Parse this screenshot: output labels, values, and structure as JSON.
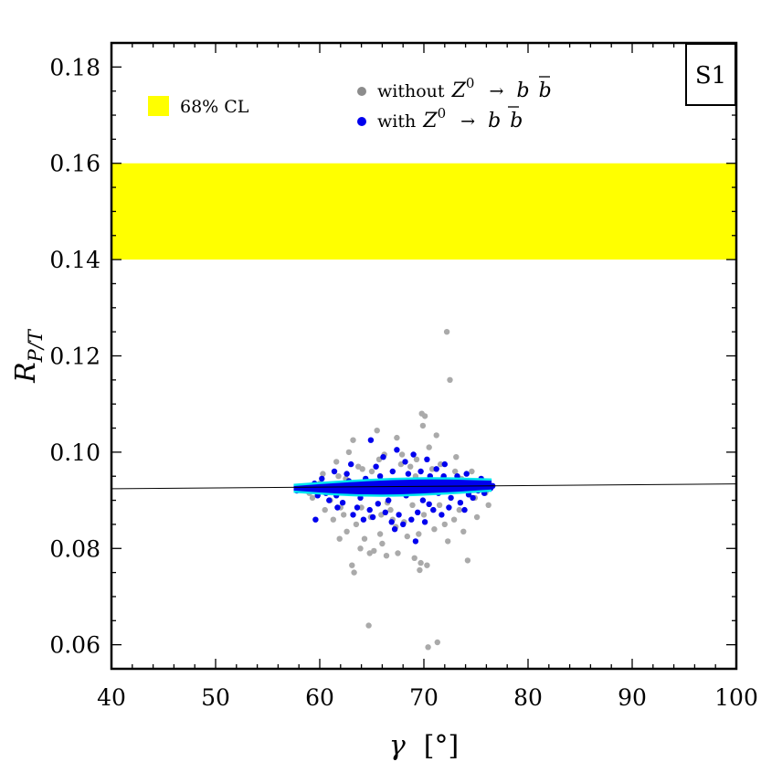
{
  "chart_data": {
    "type": "scatter",
    "panel_label": "S1",
    "xlabel": {
      "symbol": "γ",
      "unit": "[°]"
    },
    "ylabel": {
      "main": "R",
      "sub": "P/T"
    },
    "xlim": [
      40,
      100
    ],
    "ylim": [
      0.055,
      0.185
    ],
    "x_ticks": [
      {
        "value": 40,
        "label": "40"
      },
      {
        "value": 50,
        "label": "50"
      },
      {
        "value": 60,
        "label": "60"
      },
      {
        "value": 70,
        "label": "70"
      },
      {
        "value": 80,
        "label": "80"
      },
      {
        "value": 90,
        "label": "90"
      },
      {
        "value": 100,
        "label": "100"
      }
    ],
    "y_ticks": [
      {
        "value": 0.06,
        "label": "0.06"
      },
      {
        "value": 0.08,
        "label": "0.08"
      },
      {
        "value": 0.1,
        "label": "0.10"
      },
      {
        "value": 0.12,
        "label": "0.12"
      },
      {
        "value": 0.14,
        "label": "0.14"
      },
      {
        "value": 0.16,
        "label": "0.16"
      },
      {
        "value": 0.18,
        "label": "0.18"
      }
    ],
    "band": {
      "label": "68% CL",
      "y_low": 0.14,
      "y_high": 0.16,
      "color": "#ffff00"
    },
    "reference_line": {
      "x": [
        40,
        100
      ],
      "y": [
        0.0924,
        0.0934
      ],
      "color": "#000000"
    },
    "envelope": {
      "color": "#00e5ee",
      "x": [
        57.5,
        62,
        67,
        72,
        76.5
      ],
      "upper": [
        0.0932,
        0.0939,
        0.0945,
        0.0946,
        0.0943
      ],
      "lower": [
        0.0918,
        0.0911,
        0.0909,
        0.0914,
        0.092
      ]
    },
    "legend": [
      {
        "label": "without",
        "expr": "Z",
        "sup": "0",
        "arrow": "→",
        "b": "b",
        "bbar": "b",
        "color": "#8c8c8c"
      },
      {
        "label": "with",
        "expr": "Z",
        "sup": "0",
        "arrow": "→",
        "b": "b",
        "bbar": "b",
        "color": "#0000ee"
      }
    ],
    "series": [
      {
        "name": "without",
        "color": "#aaaaaa",
        "points": [
          [
            72.2,
            0.125
          ],
          [
            72.5,
            0.115
          ],
          [
            69.8,
            0.108
          ],
          [
            70.1,
            0.1075
          ],
          [
            69.9,
            0.1055
          ],
          [
            65.5,
            0.1045
          ],
          [
            71.2,
            0.1035
          ],
          [
            63.2,
            0.1025
          ],
          [
            67.4,
            0.103
          ],
          [
            62.8,
            0.1
          ],
          [
            61.6,
            0.098
          ],
          [
            73.1,
            0.099
          ],
          [
            70.5,
            0.101
          ],
          [
            66.2,
            0.0995
          ],
          [
            64.1,
            0.0965
          ],
          [
            68.7,
            0.097
          ],
          [
            74.6,
            0.096
          ],
          [
            60.3,
            0.0955
          ],
          [
            69.2,
            0.095
          ],
          [
            71.8,
            0.0945
          ],
          [
            62.0,
            0.0885
          ],
          [
            66.8,
            0.088
          ],
          [
            70.0,
            0.087
          ],
          [
            73.4,
            0.088
          ],
          [
            64.9,
            0.0865
          ],
          [
            61.3,
            0.086
          ],
          [
            68.1,
            0.0855
          ],
          [
            72.9,
            0.086
          ],
          [
            75.1,
            0.0865
          ],
          [
            63.5,
            0.085
          ],
          [
            67.3,
            0.0845
          ],
          [
            71.0,
            0.084
          ],
          [
            62.6,
            0.0835
          ],
          [
            65.8,
            0.083
          ],
          [
            69.5,
            0.083
          ],
          [
            73.8,
            0.0835
          ],
          [
            61.9,
            0.082
          ],
          [
            64.3,
            0.082
          ],
          [
            68.4,
            0.0825
          ],
          [
            72.3,
            0.0815
          ],
          [
            66.0,
            0.081
          ],
          [
            63.9,
            0.08
          ],
          [
            65.2,
            0.0795
          ],
          [
            64.8,
            0.079
          ],
          [
            66.4,
            0.0785
          ],
          [
            69.1,
            0.078
          ],
          [
            69.7,
            0.077
          ],
          [
            70.3,
            0.0765
          ],
          [
            74.2,
            0.0775
          ],
          [
            63.1,
            0.0765
          ],
          [
            63.3,
            0.075
          ],
          [
            69.6,
            0.0755
          ],
          [
            67.5,
            0.079
          ],
          [
            64.7,
            0.064
          ],
          [
            71.3,
            0.0605
          ],
          [
            70.4,
            0.0595
          ],
          [
            60.5,
            0.088
          ],
          [
            59.3,
            0.0905
          ],
          [
            76.2,
            0.089
          ],
          [
            75.9,
            0.0915
          ],
          [
            58.4,
            0.0925
          ],
          [
            62.5,
            0.0945
          ],
          [
            65.0,
            0.096
          ],
          [
            67.8,
            0.0975
          ],
          [
            70.8,
            0.0965
          ],
          [
            73.6,
            0.0945
          ],
          [
            61.0,
            0.09
          ],
          [
            66.5,
            0.0895
          ],
          [
            71.5,
            0.089
          ],
          [
            74.9,
            0.0905
          ],
          [
            68.9,
            0.089
          ],
          [
            64.0,
            0.0885
          ],
          [
            65.9,
            0.087
          ],
          [
            70.9,
            0.088
          ],
          [
            62.3,
            0.087
          ],
          [
            67.0,
            0.086
          ],
          [
            72.0,
            0.085
          ],
          [
            60.0,
            0.0935
          ],
          [
            61.8,
            0.095
          ],
          [
            63.7,
            0.097
          ],
          [
            65.7,
            0.0985
          ],
          [
            67.9,
            0.0995
          ],
          [
            69.3,
            0.0985
          ],
          [
            71.6,
            0.0975
          ],
          [
            73.0,
            0.096
          ],
          [
            75.4,
            0.094
          ],
          [
            59.0,
            0.0915
          ],
          [
            76.0,
            0.092
          ]
        ]
      },
      {
        "name": "with",
        "color": "#0000ee",
        "points": [
          [
            64.9,
            0.1025
          ],
          [
            67.4,
            0.1005
          ],
          [
            69.0,
            0.0995
          ],
          [
            70.3,
            0.0985
          ],
          [
            66.1,
            0.099
          ],
          [
            63.0,
            0.0975
          ],
          [
            72.0,
            0.0975
          ],
          [
            68.2,
            0.098
          ],
          [
            65.4,
            0.097
          ],
          [
            71.2,
            0.0965
          ],
          [
            61.4,
            0.096
          ],
          [
            74.1,
            0.0955
          ],
          [
            62.6,
            0.0955
          ],
          [
            73.2,
            0.095
          ],
          [
            60.2,
            0.0945
          ],
          [
            75.5,
            0.0945
          ],
          [
            59.5,
            0.0935
          ],
          [
            76.1,
            0.0935
          ],
          [
            58.6,
            0.0925
          ],
          [
            76.4,
            0.0925
          ],
          [
            59.8,
            0.091
          ],
          [
            75.8,
            0.0915
          ],
          [
            60.9,
            0.09
          ],
          [
            74.7,
            0.0905
          ],
          [
            62.2,
            0.0895
          ],
          [
            73.5,
            0.0895
          ],
          [
            63.6,
            0.0885
          ],
          [
            72.4,
            0.0885
          ],
          [
            64.8,
            0.088
          ],
          [
            70.9,
            0.088
          ],
          [
            66.3,
            0.0875
          ],
          [
            69.4,
            0.0875
          ],
          [
            67.6,
            0.087
          ],
          [
            65.1,
            0.0865
          ],
          [
            68.8,
            0.086
          ],
          [
            66.9,
            0.0855
          ],
          [
            64.2,
            0.086
          ],
          [
            70.1,
            0.0855
          ],
          [
            63.2,
            0.087
          ],
          [
            71.7,
            0.087
          ],
          [
            59.6,
            0.086
          ],
          [
            67.2,
            0.084
          ],
          [
            69.2,
            0.0815
          ],
          [
            68.0,
            0.085
          ],
          [
            61.7,
            0.0885
          ],
          [
            73.9,
            0.088
          ],
          [
            62.8,
            0.094
          ],
          [
            65.8,
            0.095
          ],
          [
            68.5,
            0.0955
          ],
          [
            70.6,
            0.095
          ],
          [
            72.8,
            0.094
          ],
          [
            61.1,
            0.093
          ],
          [
            64.4,
            0.0945
          ],
          [
            67.0,
            0.096
          ],
          [
            69.7,
            0.096
          ],
          [
            71.9,
            0.095
          ],
          [
            74.5,
            0.0935
          ],
          [
            60.6,
            0.0915
          ],
          [
            63.9,
            0.0905
          ],
          [
            66.6,
            0.09
          ],
          [
            69.9,
            0.09
          ],
          [
            72.6,
            0.0905
          ],
          [
            75.2,
            0.092
          ],
          [
            62.0,
            0.092
          ],
          [
            65.0,
            0.0915
          ],
          [
            68.3,
            0.091
          ],
          [
            71.4,
            0.0915
          ],
          [
            73.7,
            0.0925
          ],
          [
            63.4,
            0.0935
          ],
          [
            66.8,
            0.0935
          ],
          [
            70.2,
            0.0935
          ],
          [
            67.9,
            0.0925
          ],
          [
            64.6,
            0.0925
          ],
          [
            72.2,
            0.0925
          ],
          [
            61.6,
            0.091
          ],
          [
            74.3,
            0.0912
          ],
          [
            65.6,
            0.0893
          ],
          [
            70.5,
            0.0892
          ],
          [
            68.7,
            0.094
          ],
          [
            66.0,
            0.094
          ],
          [
            60.0,
            0.0925
          ],
          [
            57.8,
            0.092
          ],
          [
            76.6,
            0.093
          ],
          [
            63.8,
            0.0918
          ],
          [
            69.1,
            0.092
          ],
          [
            67.3,
            0.0918
          ],
          [
            71.1,
            0.0928
          ],
          [
            62.4,
            0.0928
          ],
          [
            73.0,
            0.093
          ],
          [
            65.3,
            0.093
          ]
        ]
      }
    ]
  }
}
